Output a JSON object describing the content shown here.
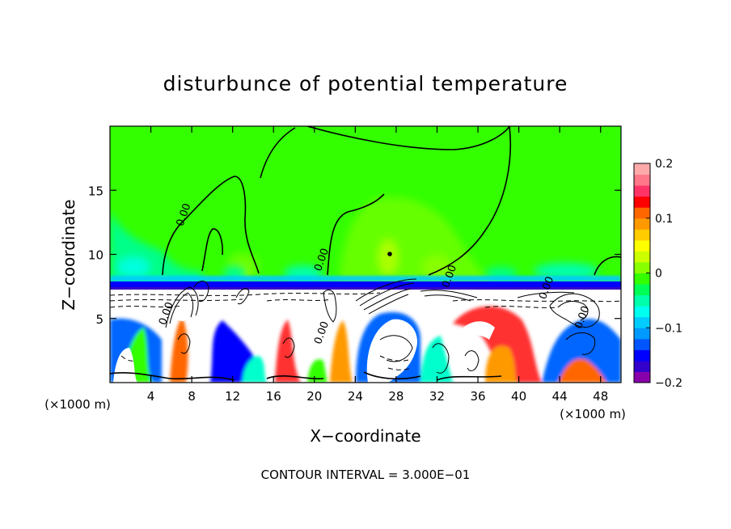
{
  "chart_data": {
    "type": "heatmap",
    "title": "disturbunce of potential temperature",
    "xlabel": "X−coordinate",
    "ylabel": "Z−coordinate",
    "x_unit": "(×1000 m)",
    "x_unit_right": "(×1000 m)",
    "footer": "CONTOUR INTERVAL = 3.000E−01",
    "xlim": [
      0,
      50
    ],
    "ylim": [
      0,
      20
    ],
    "x_ticks": [
      4,
      8,
      12,
      16,
      20,
      24,
      28,
      32,
      36,
      40,
      44,
      48
    ],
    "y_ticks": [
      5,
      10,
      15
    ],
    "colorbar": {
      "min": -0.2,
      "max": 0.2,
      "ticks": [
        -0.2,
        -0.1,
        0,
        0.1,
        0.2
      ],
      "tick_labels": [
        "−0.2",
        "−0.1",
        "0",
        "0.1",
        "0.2"
      ],
      "colors": [
        "#8800aa",
        "#3300cc",
        "#0000ff",
        "#0055ff",
        "#0099ff",
        "#00ccff",
        "#00ffee",
        "#00ffaa",
        "#00ff55",
        "#33ff00",
        "#88ff00",
        "#ccff00",
        "#ffff00",
        "#ffcc00",
        "#ff9900",
        "#ff6600",
        "#ff0000",
        "#ff3366",
        "#ff7788",
        "#ffaaaa"
      ]
    },
    "contour_labels": [
      {
        "x": 7.5,
        "z": 13,
        "text": "0.00"
      },
      {
        "x": 21,
        "z": 9.5,
        "text": "0.00"
      },
      {
        "x": 33.5,
        "z": 8.2,
        "text": "0.00"
      },
      {
        "x": 43,
        "z": 7.3,
        "text": "0.00"
      },
      {
        "x": 5.8,
        "z": 5.3,
        "text": "0.00"
      },
      {
        "x": 21,
        "z": 3.8,
        "text": "0.00"
      },
      {
        "x": 46.5,
        "z": 5,
        "text": "0.00"
      }
    ]
  }
}
